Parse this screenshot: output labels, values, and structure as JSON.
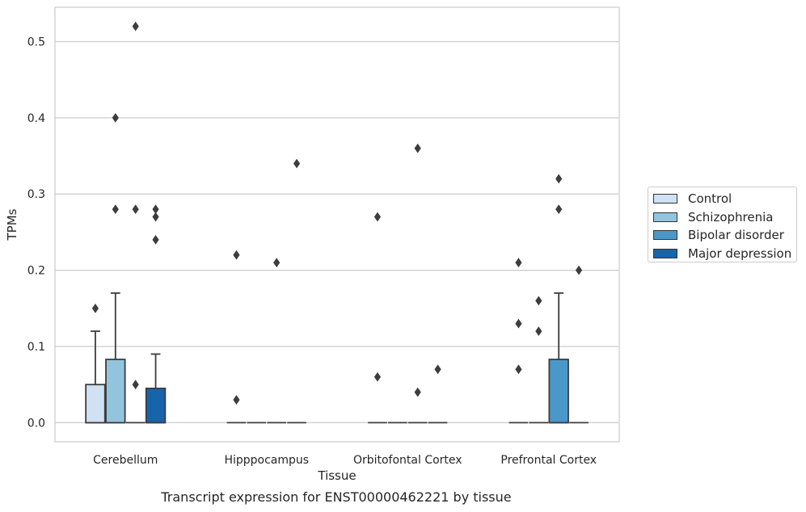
{
  "chart_data": {
    "type": "box",
    "title": "Transcript expression for ENST00000462221 by tissue",
    "xlabel": "Tissue",
    "ylabel": "TPMs",
    "ylim": [
      -0.025,
      0.545
    ],
    "yticks": [
      0.0,
      0.1,
      0.2,
      0.3,
      0.4,
      0.5
    ],
    "ytick_labels": [
      "0.0",
      "0.1",
      "0.2",
      "0.3",
      "0.4",
      "0.5"
    ],
    "grid": true,
    "legend_position": "right-center",
    "categories": [
      "Cerebellum",
      "Hipppocampus",
      "Orbitofontal Cortex",
      "Prefrontal Cortex"
    ],
    "series": [
      {
        "name": "Control",
        "color": "#cfe1f2",
        "boxes": [
          {
            "q1": 0.0,
            "median": 0.0,
            "q3": 0.05,
            "whisker_low": 0.0,
            "whisker_high": 0.12,
            "outliers": [
              0.15
            ]
          },
          {
            "q1": 0.0,
            "median": 0.0,
            "q3": 0.0,
            "whisker_low": 0.0,
            "whisker_high": 0.0,
            "outliers": [
              0.22,
              0.03
            ]
          },
          {
            "q1": 0.0,
            "median": 0.0,
            "q3": 0.0,
            "whisker_low": 0.0,
            "whisker_high": 0.0,
            "outliers": [
              0.27,
              0.06
            ]
          },
          {
            "q1": 0.0,
            "median": 0.0,
            "q3": 0.0,
            "whisker_low": 0.0,
            "whisker_high": 0.0,
            "outliers": [
              0.21,
              0.13,
              0.07
            ]
          }
        ]
      },
      {
        "name": "Schizophrenia",
        "color": "#93c4de",
        "boxes": [
          {
            "q1": 0.0,
            "median": 0.0,
            "q3": 0.083,
            "whisker_low": 0.0,
            "whisker_high": 0.17,
            "outliers": [
              0.4,
              0.28
            ]
          },
          {
            "q1": 0.0,
            "median": 0.0,
            "q3": 0.0,
            "whisker_low": 0.0,
            "whisker_high": 0.0,
            "outliers": []
          },
          {
            "q1": 0.0,
            "median": 0.0,
            "q3": 0.0,
            "whisker_low": 0.0,
            "whisker_high": 0.0,
            "outliers": []
          },
          {
            "q1": 0.0,
            "median": 0.0,
            "q3": 0.0,
            "whisker_low": 0.0,
            "whisker_high": 0.0,
            "outliers": [
              0.16,
              0.12
            ]
          }
        ]
      },
      {
        "name": "Bipolar disorder",
        "color": "#4a98c9",
        "boxes": [
          {
            "q1": 0.0,
            "median": 0.0,
            "q3": 0.0,
            "whisker_low": 0.0,
            "whisker_high": 0.0,
            "outliers": [
              0.52,
              0.28,
              0.05
            ]
          },
          {
            "q1": 0.0,
            "median": 0.0,
            "q3": 0.0,
            "whisker_low": 0.0,
            "whisker_high": 0.0,
            "outliers": [
              0.21
            ]
          },
          {
            "q1": 0.0,
            "median": 0.0,
            "q3": 0.0,
            "whisker_low": 0.0,
            "whisker_high": 0.0,
            "outliers": [
              0.36,
              0.04
            ]
          },
          {
            "q1": 0.0,
            "median": 0.0,
            "q3": 0.083,
            "whisker_low": 0.0,
            "whisker_high": 0.17,
            "outliers": [
              0.32,
              0.28
            ]
          }
        ]
      },
      {
        "name": "Major depression",
        "color": "#1764ab",
        "boxes": [
          {
            "q1": 0.0,
            "median": 0.0,
            "q3": 0.045,
            "whisker_low": 0.0,
            "whisker_high": 0.09,
            "outliers": [
              0.28,
              0.27,
              0.24
            ]
          },
          {
            "q1": 0.0,
            "median": 0.0,
            "q3": 0.0,
            "whisker_low": 0.0,
            "whisker_high": 0.0,
            "outliers": [
              0.34
            ]
          },
          {
            "q1": 0.0,
            "median": 0.0,
            "q3": 0.0,
            "whisker_low": 0.0,
            "whisker_high": 0.0,
            "outliers": [
              0.07
            ]
          },
          {
            "q1": 0.0,
            "median": 0.0,
            "q3": 0.0,
            "whisker_low": 0.0,
            "whisker_high": 0.0,
            "outliers": [
              0.2
            ]
          }
        ]
      }
    ]
  }
}
